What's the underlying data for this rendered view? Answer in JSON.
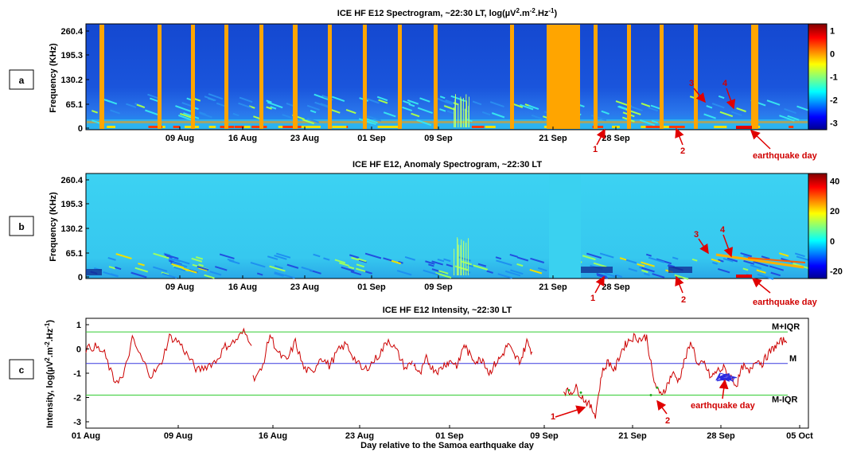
{
  "colors": {
    "background": "#ffffff",
    "gap_fill": "#ffa500",
    "spectrogram_base": "#1a4fd8",
    "anomaly_base": "#3ad1f0",
    "intensity_line": "#cc0000",
    "earthquake_marker": "#2a2ae0",
    "median_line": "#3a3adf",
    "iqr_line": "#33cc33",
    "annotation_red": "#e00000"
  },
  "chart_data": [
    {
      "panel": "a",
      "type": "heatmap",
      "title": "ICE HF E12 Spectrogram, ~22:30 LT, log(µV².m⁻².Hz⁻¹)",
      "title_parts": {
        "main": "ICE HF E12 Spectrogram, ~22:30 LT, log(µV",
        "sup1": "2",
        "mid": ".m",
        "sup2": "-2",
        "mid2": ".Hz",
        "sup3": "-1",
        "end": ")"
      },
      "ylabel": "Frequency (KHz)",
      "yticks": [
        "0",
        "65.1",
        "130.2",
        "195.3",
        "260.4"
      ],
      "xticks": [
        "09 Aug",
        "16 Aug",
        "23 Aug",
        "01 Sep",
        "09 Sep",
        "21 Sep",
        "28 Sep"
      ],
      "colorbar_ticks": [
        "1",
        "0",
        "-1",
        "-2",
        "-3"
      ],
      "colorbar_range": [
        -3.3,
        1.3
      ],
      "colormap": "jet",
      "data_gaps_orange": true,
      "annotations": [
        "1",
        "2",
        "3",
        "4",
        "earthquake day"
      ]
    },
    {
      "panel": "b",
      "type": "heatmap",
      "title": "ICE HF E12, Anomaly Spectrogram, ~22:30 LT",
      "ylabel": "Frequency (KHz)",
      "yticks": [
        "0",
        "65.1",
        "130.2",
        "195.3",
        "260.4"
      ],
      "xticks": [
        "09 Aug",
        "16 Aug",
        "23 Aug",
        "01 Sep",
        "09 Sep",
        "21 Sep",
        "28 Sep"
      ],
      "colorbar_ticks": [
        "40",
        "20",
        "0",
        "-20"
      ],
      "colorbar_range": [
        -25,
        45
      ],
      "colormap": "jet",
      "annotations": [
        "1",
        "2",
        "3",
        "4",
        "earthquake day"
      ]
    },
    {
      "panel": "c",
      "type": "line",
      "title": "ICE HF E12 Intensity, ~22:30 LT",
      "xlabel": "Day relative to the Samoa earthquake day",
      "ylabel": "Intensity, log(µV².m⁻².Hz⁻¹)",
      "ylabel_parts": {
        "main": "Intensity, log(µV",
        "sup1": "2",
        "mid": ".m",
        "sup2": "-2",
        "mid2": ".Hz",
        "sup3": "-1",
        "end": ")"
      },
      "xticks": [
        "01 Aug",
        "09 Aug",
        "16 Aug",
        "23 Aug",
        "01 Sep",
        "09 Sep",
        "21 Sep",
        "28 Sep",
        "05 Oct"
      ],
      "yticks": [
        "1",
        "0",
        "-1",
        "-2",
        "-3"
      ],
      "ylim": [
        -3,
        1
      ],
      "reference_lines": [
        {
          "label": "M+IQR",
          "value": 0.7
        },
        {
          "label": "M",
          "value": -0.6
        },
        {
          "label": "M-IQR",
          "value": -1.9
        }
      ],
      "series": [
        {
          "values": [
            0.0,
            0.1,
            -0.2,
            -1.3,
            -1.2,
            0.4,
            -0.4,
            -1.1,
            -0.7,
            0.5,
            0.3,
            -0.3,
            -0.9,
            -0.7,
            -0.5,
            0.1,
            0.3,
            0.7,
            0.2
          ]
        },
        {
          "values": [
            -1.2,
            -0.9,
            0.6,
            -0.2,
            -0.5,
            0.3,
            -0.8,
            -1.0,
            -0.3,
            -0.7,
            -0.1,
            0.2,
            -0.4,
            -0.9,
            -0.6,
            -0.2,
            0.4,
            -0.1,
            -0.8,
            -0.5
          ]
        },
        {
          "values": [
            -0.6,
            -1.1,
            -0.4,
            -0.8,
            -0.9,
            -0.6,
            -0.5,
            -0.7,
            0.2,
            -0.3,
            -0.5,
            -0.4,
            -1.0,
            -0.6,
            -0.3,
            0.2,
            -0.3,
            -0.5,
            0.3,
            -0.2
          ]
        },
        {
          "values": [
            -1.7,
            -1.8,
            -1.6,
            -2.0,
            -2.3,
            -2.7,
            -1.0,
            -0.5,
            -0.9,
            -0.1,
            0.3,
            0.5,
            0.4,
            0.5,
            -1.2,
            -1.9,
            -1.6,
            -1.0,
            -1.3,
            -0.4,
            0.3,
            -0.7,
            -0.6,
            -1.2,
            -0.9,
            -0.8,
            -1.1,
            -1.5,
            -0.7,
            -1.0,
            -0.4,
            -0.6,
            -0.2,
            0.1,
            0.3,
            0.4
          ]
        }
      ],
      "annotations": [
        "1",
        "2",
        "earthquake day"
      ]
    }
  ],
  "panel_labels": [
    "a",
    "b",
    "c"
  ]
}
